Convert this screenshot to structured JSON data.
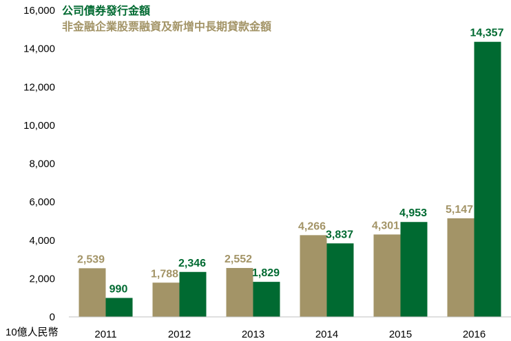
{
  "chart_data": {
    "type": "bar",
    "categories": [
      "2011",
      "2012",
      "2013",
      "2014",
      "2015",
      "2016"
    ],
    "series": [
      {
        "name": "非金融企業股票融資及新增中長期貸款金額",
        "color": "#a39467",
        "values": [
          2539,
          1788,
          2552,
          4266,
          4301,
          5147
        ],
        "labels": [
          "2,539",
          "1,788",
          "2,552",
          "4,266",
          "4,301",
          "5,147"
        ]
      },
      {
        "name": "公司債券發行金額",
        "color": "#006a31",
        "values": [
          990,
          2346,
          1829,
          3837,
          4953,
          14357
        ],
        "labels": [
          "990",
          "2,346",
          "1,829",
          "3,837",
          "4,953",
          "14,357"
        ]
      }
    ],
    "legend_order": [
      1,
      0
    ],
    "ylim": [
      0,
      16000
    ],
    "yticks": [
      0,
      2000,
      4000,
      6000,
      8000,
      10000,
      12000,
      14000,
      16000
    ],
    "ytick_labels": [
      "0",
      "2,000",
      "4,000",
      "6,000",
      "8,000",
      "10,000",
      "12,000",
      "14,000",
      "16,000"
    ],
    "unit_label": "10億人民幣",
    "legend_position": "top-left",
    "grid": false
  }
}
